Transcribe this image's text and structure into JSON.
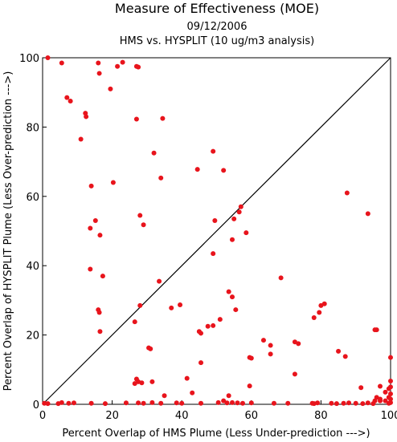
{
  "chart_data": {
    "type": "scatter",
    "title": "Measure of Effectiveness (MOE)",
    "subtitle_date": "09/12/2006",
    "subtitle_run": "HMS vs. HYSPLIT  (10 ug/m3 analysis)",
    "xlabel": "Percent Overlap of HMS Plume (Less Under-prediction --->)",
    "ylabel": "Percent Overlap of HYSPLIT Plume (Less Over-prediction --->)",
    "xlim": [
      0,
      100
    ],
    "ylim": [
      0,
      100
    ],
    "xticks": [
      0,
      20,
      40,
      60,
      80,
      100
    ],
    "yticks": [
      0,
      20,
      40,
      60,
      80,
      100
    ],
    "xtick_labels": [
      "0",
      "20",
      "40",
      "60",
      "80",
      "100"
    ],
    "ytick_labels": [
      "0",
      "20",
      "40",
      "60",
      "80",
      "100"
    ],
    "grid": false,
    "reference_line": {
      "from": [
        0,
        0
      ],
      "to": [
        100,
        100
      ]
    },
    "marker_color": "#e8141c",
    "points": [
      [
        1.5,
        100
      ],
      [
        5.5,
        98.5
      ],
      [
        16,
        98.5
      ],
      [
        21.5,
        97.5
      ],
      [
        23,
        98.7
      ],
      [
        27,
        97.5
      ],
      [
        27.5,
        97.3
      ],
      [
        16.3,
        95.5
      ],
      [
        19.5,
        91
      ],
      [
        7,
        88.5
      ],
      [
        8,
        87.5
      ],
      [
        12.3,
        84
      ],
      [
        12.5,
        83
      ],
      [
        11,
        76.5
      ],
      [
        27,
        82.3
      ],
      [
        34.5,
        82.5
      ],
      [
        32,
        72.5
      ],
      [
        49,
        73
      ],
      [
        44.5,
        67.8
      ],
      [
        52,
        67.5
      ],
      [
        34,
        65.3
      ],
      [
        20.3,
        64
      ],
      [
        14,
        63
      ],
      [
        87.5,
        61
      ],
      [
        57,
        57
      ],
      [
        56.5,
        55.5
      ],
      [
        93.5,
        55
      ],
      [
        28,
        54.5
      ],
      [
        49.5,
        53
      ],
      [
        55,
        53.5
      ],
      [
        15.2,
        53
      ],
      [
        29,
        51.8
      ],
      [
        13.7,
        50.8
      ],
      [
        58.5,
        49.5
      ],
      [
        16.5,
        48.8
      ],
      [
        54.5,
        47.5
      ],
      [
        49,
        43.5
      ],
      [
        13.7,
        39
      ],
      [
        17.3,
        37
      ],
      [
        68.5,
        36.5
      ],
      [
        33.5,
        35.5
      ],
      [
        53.5,
        32.5
      ],
      [
        54.5,
        31
      ],
      [
        81,
        29
      ],
      [
        28,
        28.5
      ],
      [
        39.5,
        28.7
      ],
      [
        37,
        27.8
      ],
      [
        80,
        28.5
      ],
      [
        16,
        27.3
      ],
      [
        55.5,
        27.3
      ],
      [
        79.5,
        26.5
      ],
      [
        16.3,
        26.5
      ],
      [
        78,
        25
      ],
      [
        51,
        24.5
      ],
      [
        26.5,
        23.8
      ],
      [
        47.5,
        22.5
      ],
      [
        49,
        22.7
      ],
      [
        45,
        21
      ],
      [
        45.5,
        20.5
      ],
      [
        16.5,
        21
      ],
      [
        95.5,
        21.5
      ],
      [
        96,
        21.5
      ],
      [
        63.5,
        18.5
      ],
      [
        72.5,
        18
      ],
      [
        73.5,
        17.5
      ],
      [
        65.5,
        17
      ],
      [
        30.5,
        16.3
      ],
      [
        31,
        16
      ],
      [
        85,
        15.3
      ],
      [
        65.5,
        14.5
      ],
      [
        87,
        13.8
      ],
      [
        59.5,
        13.5
      ],
      [
        60,
        13.3
      ],
      [
        100,
        13.5
      ],
      [
        45.5,
        12
      ],
      [
        72.5,
        8.7
      ],
      [
        41.5,
        7.5
      ],
      [
        27,
        7.3
      ],
      [
        31.5,
        6.5
      ],
      [
        26.5,
        6
      ],
      [
        27.5,
        6.5
      ],
      [
        28.5,
        6.2
      ],
      [
        100,
        6.7
      ],
      [
        59.5,
        5.3
      ],
      [
        97,
        5.2
      ],
      [
        100,
        5
      ],
      [
        91.5,
        4.8
      ],
      [
        99.5,
        4.5
      ],
      [
        98.5,
        3.5
      ],
      [
        100,
        3
      ],
      [
        43,
        3.3
      ],
      [
        35,
        2.5
      ],
      [
        53.5,
        2.5
      ],
      [
        96,
        2
      ],
      [
        99.5,
        2
      ],
      [
        97,
        1.5
      ],
      [
        100,
        1.5
      ],
      [
        52,
        1
      ],
      [
        95.5,
        1
      ],
      [
        97,
        1
      ],
      [
        98.5,
        1
      ],
      [
        0.5,
        0.3
      ],
      [
        1.5,
        0.2
      ],
      [
        4.5,
        0.2
      ],
      [
        5.5,
        0.5
      ],
      [
        7.5,
        0.3
      ],
      [
        9,
        0.4
      ],
      [
        14,
        0.3
      ],
      [
        18,
        0.2
      ],
      [
        24,
        0.4
      ],
      [
        27.5,
        0.4
      ],
      [
        29,
        0.3
      ],
      [
        31.5,
        0.5
      ],
      [
        34,
        0.3
      ],
      [
        38.5,
        0.4
      ],
      [
        40,
        0.3
      ],
      [
        45.5,
        0.3
      ],
      [
        50.5,
        0.5
      ],
      [
        53,
        0.4
      ],
      [
        54.5,
        0.5
      ],
      [
        56,
        0.4
      ],
      [
        57.5,
        0.3
      ],
      [
        60,
        0.4
      ],
      [
        66.5,
        0.3
      ],
      [
        70.5,
        0.3
      ],
      [
        77.5,
        0.3
      ],
      [
        78,
        0.2
      ],
      [
        79,
        0.4
      ],
      [
        83,
        0.3
      ],
      [
        84.5,
        0.2
      ],
      [
        86.5,
        0.3
      ],
      [
        88,
        0.4
      ],
      [
        90,
        0.3
      ],
      [
        92,
        0.2
      ],
      [
        93.5,
        0.4
      ],
      [
        95,
        0.2
      ],
      [
        99.5,
        0.3
      ],
      [
        100,
        0.5
      ]
    ]
  }
}
